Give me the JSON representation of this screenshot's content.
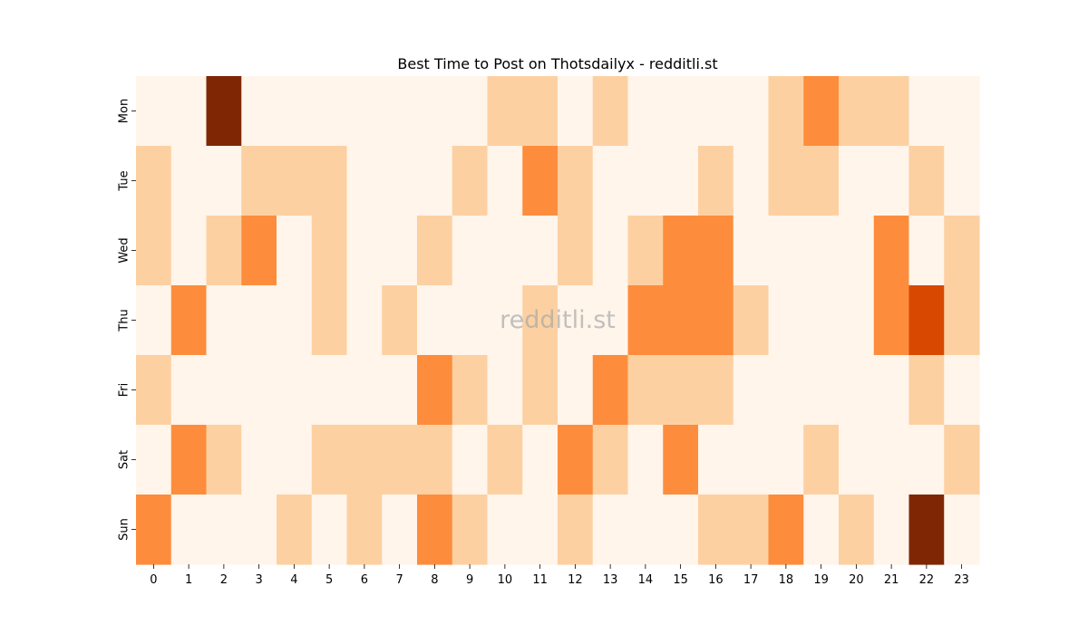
{
  "chart_data": {
    "type": "heatmap",
    "title": "Best Time to Post on Thotsdailyx - redditli.st",
    "watermark": "redditli.st",
    "x": [
      "0",
      "1",
      "2",
      "3",
      "4",
      "5",
      "6",
      "7",
      "8",
      "9",
      "10",
      "11",
      "12",
      "13",
      "14",
      "15",
      "16",
      "17",
      "18",
      "19",
      "20",
      "21",
      "22",
      "23"
    ],
    "y": [
      "Mon",
      "Tue",
      "Wed",
      "Thu",
      "Fri",
      "Sat",
      "Sun"
    ],
    "values": [
      [
        0,
        0,
        4,
        0,
        0,
        0,
        0,
        0,
        0,
        0,
        1,
        1,
        0,
        1,
        0,
        0,
        0,
        0,
        1,
        2,
        1,
        1,
        0,
        0
      ],
      [
        1,
        0,
        0,
        1,
        1,
        1,
        0,
        0,
        0,
        1,
        0,
        2,
        1,
        0,
        0,
        0,
        1,
        0,
        1,
        1,
        0,
        0,
        1,
        0
      ],
      [
        1,
        0,
        1,
        2,
        0,
        1,
        0,
        0,
        1,
        0,
        0,
        0,
        1,
        0,
        1,
        2,
        2,
        0,
        0,
        0,
        0,
        2,
        0,
        1
      ],
      [
        0,
        2,
        0,
        0,
        0,
        1,
        0,
        1,
        0,
        0,
        0,
        1,
        0,
        0,
        2,
        2,
        2,
        1,
        0,
        0,
        0,
        2,
        3,
        1
      ],
      [
        1,
        0,
        0,
        0,
        0,
        0,
        0,
        0,
        2,
        1,
        0,
        1,
        0,
        2,
        1,
        1,
        1,
        0,
        0,
        0,
        0,
        0,
        1,
        0
      ],
      [
        0,
        2,
        1,
        0,
        0,
        1,
        1,
        1,
        1,
        0,
        1,
        0,
        2,
        1,
        0,
        2,
        0,
        0,
        0,
        1,
        0,
        0,
        0,
        1
      ],
      [
        2,
        0,
        0,
        0,
        1,
        0,
        1,
        0,
        2,
        1,
        0,
        0,
        1,
        0,
        0,
        0,
        1,
        1,
        2,
        0,
        1,
        0,
        4,
        0
      ]
    ],
    "colorscale": [
      "#fff5eb",
      "#fdd0a2",
      "#fd8d3c",
      "#d94801",
      "#7f2704"
    ],
    "grid": false,
    "legend": "none"
  }
}
